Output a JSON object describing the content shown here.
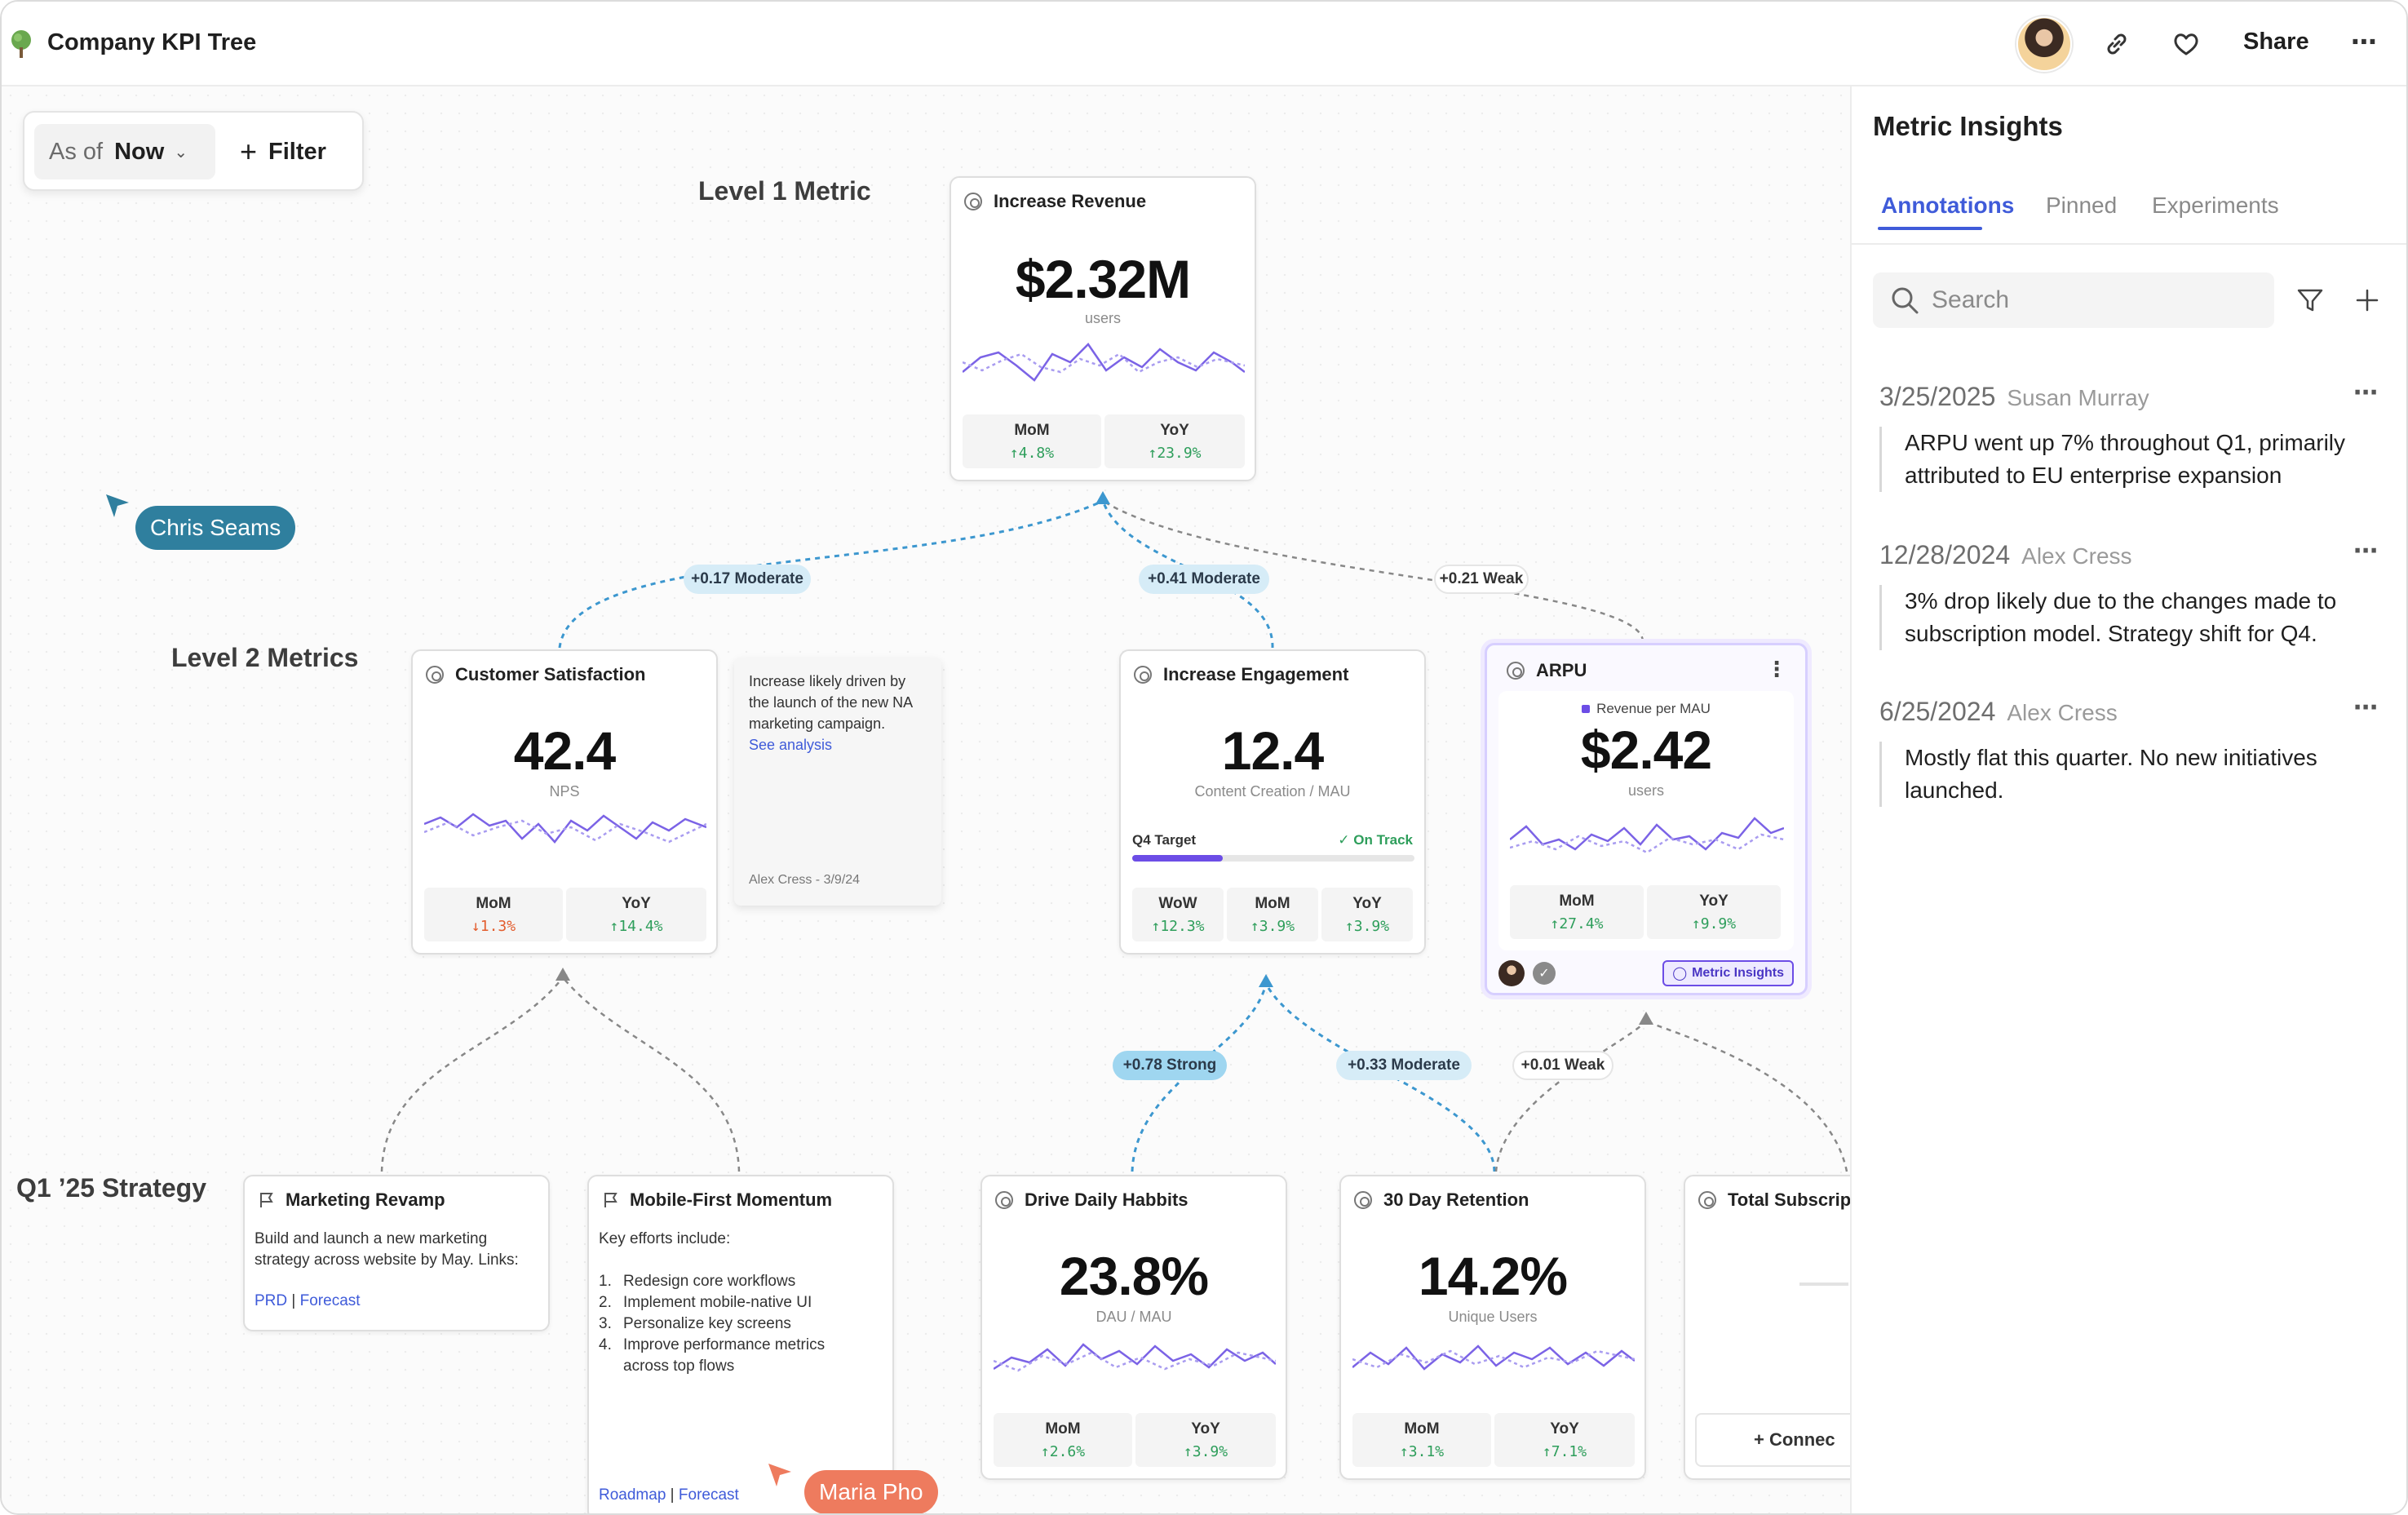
{
  "header": {
    "title": "Company KPI Tree",
    "share_label": "Share"
  },
  "icons": {
    "tree": "tree-icon",
    "link": "link-icon",
    "heart": "heart-icon",
    "more": "more-icon",
    "search": "search-icon",
    "filter": "filter-icon",
    "plus": "plus-icon"
  },
  "toolbar": {
    "asof_label": "As of",
    "asof_value": "Now",
    "filter_label": "Filter"
  },
  "levels": {
    "level1": "Level 1 Metric",
    "level2": "Level 2 Metrics",
    "strategy": "Q1 ’25 Strategy"
  },
  "edges": {
    "cs_label": "+0.17 Moderate",
    "eng_label": "+0.41 Moderate",
    "arpu_label": "+0.21 Weak",
    "drive_label": "+0.78 Strong",
    "ret_label": "+0.33 Moderate",
    "arpu_ret_label": "+0.01 Weak"
  },
  "colors": {
    "accent": "#3f5bd9",
    "purple": "#6c4de6",
    "up": "#2e9e5b",
    "down": "#e35d2e",
    "cursor_chris": "#2f7f9e",
    "cursor_maria": "#ee7b5e"
  },
  "cards": {
    "revenue": {
      "title": "Increase Revenue",
      "value": "$2.32M",
      "unit": "users",
      "stats": [
        {
          "name": "MoM",
          "val": "↑4.8%"
        },
        {
          "name": "YoY",
          "val": "↑23.9%"
        }
      ]
    },
    "cs": {
      "title": "Customer Satisfaction",
      "value": "42.4",
      "unit": "NPS",
      "stats": [
        {
          "name": "MoM",
          "val": "↓1.3%"
        },
        {
          "name": "YoY",
          "val": "↑14.4%"
        }
      ]
    },
    "cs_note": {
      "text": "Increase likely driven by the launch of the new NA marketing campaign.",
      "link": "See analysis",
      "meta": "Alex Cress - 3/9/24"
    },
    "engagement": {
      "title": "Increase Engagement",
      "value": "12.4",
      "unit": "Content Creation / MAU",
      "target_label": "Q4 Target",
      "target_status": "✓ On Track",
      "target_progress": 0.32,
      "stats": [
        {
          "name": "WoW",
          "val": "↑12.3%"
        },
        {
          "name": "MoM",
          "val": "↑3.9%"
        },
        {
          "name": "YoY",
          "val": "↑3.9%"
        }
      ]
    },
    "arpu": {
      "title": "ARPU",
      "legend": "Revenue per MAU",
      "value": "$2.42",
      "unit": "users",
      "insights_label": "Metric Insights",
      "stats": [
        {
          "name": "MoM",
          "val": "↑27.4%"
        },
        {
          "name": "YoY",
          "val": "↑9.9%"
        }
      ]
    },
    "drive": {
      "title": "Drive Daily Habbits",
      "value": "23.8%",
      "unit": "DAU / MAU",
      "stats": [
        {
          "name": "MoM",
          "val": "↑2.6%"
        },
        {
          "name": "YoY",
          "val": "↑3.9%"
        }
      ]
    },
    "retention": {
      "title": "30 Day Retention",
      "value": "14.2%",
      "unit": "Unique Users",
      "stats": [
        {
          "name": "MoM",
          "val": "↑3.1%"
        },
        {
          "name": "YoY",
          "val": "↑7.1%"
        }
      ]
    },
    "total": {
      "title": "Total Subscript",
      "connect_label": "+ Connec"
    }
  },
  "strategy": {
    "marketing": {
      "title": "Marketing Revamp",
      "body": "Build and launch a new marketing strategy across website by May. Links:",
      "link1": "PRD",
      "sep": " | ",
      "link2": "Forecast"
    },
    "mobile": {
      "title": "Mobile-First Momentum",
      "intro": "Key efforts include:",
      "items": [
        "Redesign core workflows",
        "Implement mobile-native UI",
        "Personalize key screens",
        "Improve performance metrics",
        "across top flows"
      ],
      "nums": [
        "1.",
        "2.",
        "3.",
        "4.",
        ""
      ],
      "link1": "Roadmap",
      "sep": " | ",
      "link2": "Forecast"
    }
  },
  "cursors": {
    "chris": "Chris Seams",
    "maria": "Maria Pho"
  },
  "panel": {
    "title": "Metric Insights",
    "tabs": [
      "Annotations",
      "Pinned",
      "Experiments"
    ],
    "search_placeholder": "Search",
    "annotations": [
      {
        "date": "3/25/2025",
        "author": "Susan Murray",
        "text": "ARPU went up 7% throughout Q1, primarily attributed to EU enterprise expansion"
      },
      {
        "date": "12/28/2024",
        "author": "Alex Cress",
        "text": "3% drop likely due to the changes made to subscription model. Strategy shift for Q4."
      },
      {
        "date": "6/25/2024",
        "author": "Alex Cress",
        "text": "Mostly flat this quarter. No new initiatives launched."
      }
    ]
  }
}
